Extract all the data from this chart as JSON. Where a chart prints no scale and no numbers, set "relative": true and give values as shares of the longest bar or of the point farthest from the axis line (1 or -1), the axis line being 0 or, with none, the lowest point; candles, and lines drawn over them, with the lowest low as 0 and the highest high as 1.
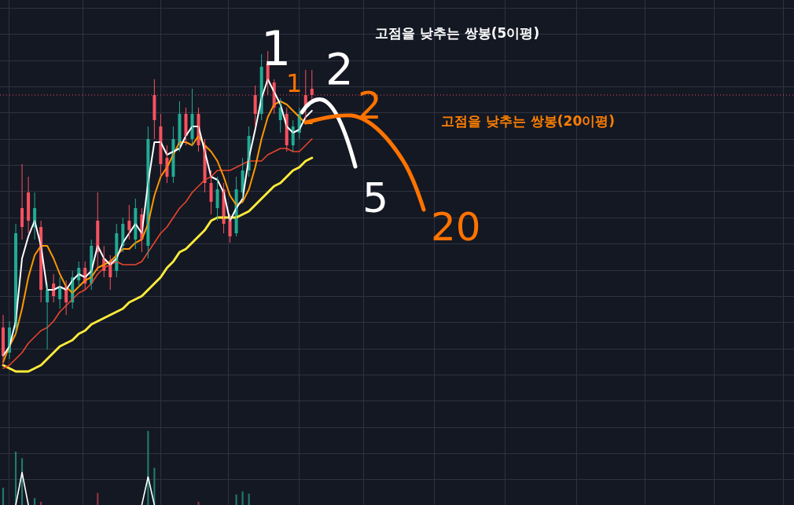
{
  "chart_data": [
    {
      "type": "candlestick",
      "relative": true,
      "grid": true,
      "marker": "none",
      "categories": [
        null,
        null,
        null,
        null,
        null,
        null,
        null,
        null,
        null,
        null,
        null,
        null,
        null,
        null,
        null,
        null,
        null,
        null,
        null,
        null,
        null,
        null,
        null,
        null,
        null,
        null,
        null,
        null,
        null,
        null,
        null,
        null,
        null,
        null,
        null,
        null,
        null,
        null,
        null,
        null,
        null,
        null,
        null,
        null,
        null,
        null,
        null,
        null,
        null,
        null,
        null,
        null,
        null,
        null,
        null,
        null,
        null,
        null,
        null,
        null,
        null,
        null,
        null,
        null,
        null,
        null,
        null,
        null,
        null,
        null,
        null,
        null,
        null,
        null,
        null,
        null,
        null,
        null,
        null,
        null,
        null,
        null,
        null,
        null,
        null,
        null,
        null,
        null,
        null,
        null,
        null,
        null,
        null,
        null,
        null,
        null,
        null,
        null,
        null,
        null,
        null,
        null,
        null,
        null,
        null,
        null,
        null,
        null,
        null,
        null,
        null,
        null,
        null,
        null,
        null,
        null,
        null,
        null,
        null,
        null,
        null,
        null,
        null,
        null,
        null,
        null
      ],
      "ohlc": [
        [
          0.12,
          0.16,
          0,
          0.03
        ],
        [
          0.04,
          0.14,
          0.02,
          0.12
        ],
        [
          0.12,
          0.45,
          0.1,
          0.42
        ],
        [
          0.5,
          0.64,
          0.4,
          0.44
        ],
        [
          0.55,
          0.6,
          0.42,
          0.46
        ],
        [
          0.44,
          0.55,
          0.4,
          0.5
        ],
        [
          0.44,
          0.46,
          0.2,
          0.24
        ],
        [
          0.2,
          0.26,
          0.05,
          0.24
        ],
        [
          0.26,
          0.29,
          0.2,
          0.22
        ],
        [
          0.21,
          0.28,
          0.18,
          0.25
        ],
        [
          0.25,
          0.27,
          0.16,
          0.2
        ],
        [
          0.2,
          0.3,
          0.18,
          0.28
        ],
        [
          0.27,
          0.33,
          0.25,
          0.31
        ],
        [
          0.31,
          0.33,
          0.24,
          0.26
        ],
        [
          0.26,
          0.4,
          0.24,
          0.38
        ],
        [
          0.46,
          0.55,
          0.3,
          0.36
        ],
        [
          0.34,
          0.38,
          0.28,
          0.3
        ],
        [
          0.33,
          0.35,
          0.24,
          0.28
        ],
        [
          0.3,
          0.45,
          0.28,
          0.42
        ],
        [
          0.38,
          0.47,
          0.36,
          0.45
        ],
        [
          0.46,
          0.51,
          0.4,
          0.43
        ],
        [
          0.4,
          0.53,
          0.37,
          0.5
        ],
        [
          0.48,
          0.5,
          0.36,
          0.4
        ],
        [
          0.38,
          0.76,
          0.34,
          0.72
        ],
        [
          0.86,
          0.91,
          0.72,
          0.78
        ],
        [
          0.76,
          0.8,
          0.6,
          0.64
        ],
        [
          0.66,
          0.7,
          0.58,
          0.6
        ],
        [
          0.6,
          0.76,
          0.58,
          0.72
        ],
        [
          0.7,
          0.84,
          0.68,
          0.8
        ],
        [
          0.8,
          0.82,
          0.7,
          0.73
        ],
        [
          0.72,
          0.88,
          0.7,
          0.8
        ],
        [
          0.8,
          0.82,
          0.68,
          0.7
        ],
        [
          0.7,
          0.72,
          0.55,
          0.58
        ],
        [
          0.58,
          0.62,
          0.48,
          0.52
        ],
        [
          0.5,
          0.6,
          0.46,
          0.56
        ],
        [
          0.56,
          0.58,
          0.42,
          0.45
        ],
        [
          0.46,
          0.48,
          0.39,
          0.41
        ],
        [
          0.42,
          0.6,
          0.41,
          0.56
        ],
        [
          0.55,
          0.66,
          0.53,
          0.62
        ],
        [
          0.62,
          0.76,
          0.6,
          0.73
        ],
        [
          0.86,
          0.89,
          0.76,
          0.8
        ],
        [
          0.8,
          0.99,
          0.78,
          0.95
        ],
        [
          0.96,
          1,
          0.86,
          0.9
        ],
        [
          0.9,
          0.91,
          0.8,
          0.82
        ],
        [
          0.78,
          0.85,
          0.74,
          0.82
        ],
        [
          0.8,
          0.82,
          0.68,
          0.7
        ],
        [
          0.7,
          0.78,
          0.68,
          0.76
        ],
        [
          0.74,
          0.82,
          0.72,
          0.8
        ],
        [
          0.86,
          0.94,
          0.78,
          0.82
        ],
        [
          0.88,
          0.94,
          0.84,
          0.86
        ],
        null,
        null,
        null,
        null,
        null,
        null,
        null,
        null,
        null,
        null,
        null,
        null,
        null,
        null,
        null,
        null,
        null,
        null,
        null,
        null,
        null,
        null,
        null,
        null,
        null,
        null,
        null,
        null,
        null,
        null,
        null,
        null,
        null,
        null,
        null,
        null,
        null,
        null,
        null,
        null,
        null,
        null,
        null,
        null,
        null,
        null,
        null,
        null,
        null,
        null,
        null,
        null,
        null,
        null,
        null,
        null,
        null,
        null,
        null,
        null,
        null,
        null,
        null,
        null,
        null,
        null,
        null,
        null,
        null,
        null,
        null,
        null,
        null,
        null,
        null,
        null
      ],
      "colors": [
        "#f7525f",
        "#22ab94",
        "#22ab94",
        "#f7525f",
        "#f7525f",
        "#22ab94",
        "#f7525f",
        "#22ab94",
        "#f7525f",
        "#22ab94",
        "#f7525f",
        "#22ab94",
        "#22ab94",
        "#f7525f",
        "#22ab94",
        "#f7525f",
        "#f7525f",
        "#f7525f",
        "#22ab94",
        "#22ab94",
        "#f7525f",
        "#22ab94",
        "#f7525f",
        "#22ab94",
        "#f7525f",
        "#f7525f",
        "#f7525f",
        "#22ab94",
        "#22ab94",
        "#f7525f",
        "#22ab94",
        "#f7525f",
        "#f7525f",
        "#f7525f",
        "#22ab94",
        "#f7525f",
        "#f7525f",
        "#22ab94",
        "#22ab94",
        "#22ab94",
        "#f7525f",
        "#22ab94",
        "#f7525f",
        "#f7525f",
        "#22ab94",
        "#f7525f",
        "#22ab94",
        "#22ab94",
        "#f7525f",
        "#f7525f",
        null,
        null,
        null,
        null,
        null,
        null,
        null,
        null,
        null,
        null,
        null,
        null,
        null,
        null,
        null,
        null,
        null,
        null,
        null,
        null,
        null,
        null,
        null,
        null,
        null,
        null,
        null,
        null,
        null,
        null,
        null,
        null,
        null,
        null,
        null,
        null,
        null,
        null,
        null,
        null,
        null,
        null,
        null,
        null,
        null,
        null,
        null,
        null,
        null,
        null,
        null,
        null,
        null,
        null,
        null,
        null,
        null,
        null,
        null,
        null,
        null,
        null,
        null,
        null,
        null,
        null,
        null,
        null,
        null,
        null,
        null,
        null,
        null,
        null,
        null,
        null
      ],
      "series": [
        {
          "type": "line",
          "color": "#ffffff",
          "values": [
            0.03,
            0.06,
            0.14,
            0.34,
            0.41,
            0.46,
            0.38,
            0.24,
            0.24,
            0.25,
            0.24,
            0.27,
            0.29,
            0.28,
            0.3,
            0.38,
            0.34,
            0.32,
            0.34,
            0.39,
            0.42,
            0.45,
            0.42,
            0.58,
            0.71,
            0.71,
            0.67,
            0.68,
            0.69,
            0.73,
            0.76,
            0.76,
            0.68,
            0.6,
            0.59,
            0.55,
            0.46,
            0.5,
            0.53,
            0.66,
            0.75,
            0.85,
            0.91,
            0.87,
            0.83,
            0.76,
            0.74,
            0.75,
            0.79,
            0.81,
            null,
            null,
            null,
            null,
            null,
            null,
            null,
            null,
            null,
            null,
            null,
            null,
            null,
            null,
            null,
            null,
            null,
            null,
            null,
            null,
            null,
            null,
            null,
            null,
            null,
            null,
            null,
            null,
            null,
            null,
            null,
            null,
            null,
            null,
            null,
            null,
            null,
            null,
            null,
            null,
            null,
            null,
            null,
            null,
            null,
            null,
            null,
            null,
            null,
            null,
            null,
            null,
            null,
            null,
            null,
            null,
            null,
            null,
            null,
            null,
            null,
            null,
            null,
            null,
            null,
            null,
            null,
            null,
            null,
            null,
            null,
            null,
            null,
            null,
            null,
            null
          ]
        },
        {
          "type": "line",
          "color": "#ff9800",
          "values": [
            0.01,
            0.06,
            0.1,
            0.18,
            0.28,
            0.35,
            0.38,
            0.38,
            0.34,
            0.29,
            0.25,
            0.23,
            0.25,
            0.27,
            0.28,
            0.31,
            0.32,
            0.33,
            0.35,
            0.37,
            0.37,
            0.39,
            0.4,
            0.45,
            0.54,
            0.6,
            0.63,
            0.67,
            0.71,
            0.71,
            0.7,
            0.73,
            0.7,
            0.68,
            0.65,
            0.6,
            0.54,
            0.51,
            0.52,
            0.56,
            0.63,
            0.72,
            0.79,
            0.83,
            0.84,
            0.83,
            0.81,
            0.79,
            0.77,
            0.77,
            null,
            null,
            null,
            null,
            null,
            null,
            null,
            null,
            null,
            null,
            null,
            null,
            null,
            null,
            null,
            null,
            null,
            null,
            null,
            null,
            null,
            null,
            null,
            null,
            null,
            null,
            null,
            null,
            null,
            null,
            null,
            null,
            null,
            null,
            null,
            null,
            null,
            null,
            null,
            null,
            null,
            null,
            null,
            null,
            null,
            null,
            null,
            null,
            null,
            null,
            null,
            null,
            null,
            null,
            null,
            null,
            null,
            null,
            null,
            null,
            null,
            null,
            null,
            null,
            null,
            null,
            null,
            null,
            null,
            null,
            null,
            null,
            null,
            null,
            null,
            null
          ]
        },
        {
          "type": "line",
          "color": "#e8452a",
          "values": [
            -0.01,
            0,
            0.02,
            0.04,
            0.07,
            0.09,
            0.11,
            0.12,
            0.14,
            0.17,
            0.19,
            0.21,
            0.23,
            0.24,
            0.26,
            0.29,
            0.31,
            0.32,
            0.33,
            0.32,
            0.32,
            0.32,
            0.33,
            0.36,
            0.39,
            0.42,
            0.44,
            0.47,
            0.5,
            0.52,
            0.55,
            0.57,
            0.59,
            0.6,
            0.62,
            0.62,
            0.62,
            0.63,
            0.64,
            0.65,
            0.65,
            0.65,
            0.67,
            0.68,
            0.69,
            0.69,
            0.68,
            0.68,
            0.7,
            0.72,
            null,
            null,
            null,
            null,
            null,
            null,
            null,
            null,
            null,
            null,
            null,
            null,
            null,
            null,
            null,
            null,
            null,
            null,
            null,
            null,
            null,
            null,
            null,
            null,
            null,
            null,
            null,
            null,
            null,
            null,
            null,
            null,
            null,
            null,
            null,
            null,
            null,
            null,
            null,
            null,
            null,
            null,
            null,
            null,
            null,
            null,
            null,
            null,
            null,
            null,
            null,
            null,
            null,
            null,
            null,
            null,
            null,
            null,
            null,
            null,
            null,
            null,
            null,
            null,
            null,
            null,
            null,
            null,
            null,
            null,
            null,
            null,
            null,
            null,
            null,
            null
          ]
        },
        {
          "type": "line",
          "color": "#ffeb3b",
          "values": [
            0,
            -0.01,
            -0.02,
            -0.02,
            -0.02,
            -0.01,
            0,
            0.02,
            0.04,
            0.06,
            0.07,
            0.08,
            0.1,
            0.11,
            0.13,
            0.14,
            0.15,
            0.16,
            0.17,
            0.18,
            0.2,
            0.21,
            0.22,
            0.24,
            0.26,
            0.28,
            0.31,
            0.33,
            0.36,
            0.37,
            0.39,
            0.41,
            0.43,
            0.46,
            0.47,
            0.47,
            0.47,
            0.47,
            0.48,
            0.49,
            0.51,
            0.53,
            0.55,
            0.57,
            0.58,
            0.6,
            0.62,
            0.63,
            0.65,
            0.66,
            null,
            null,
            null,
            null,
            null,
            null,
            null,
            null,
            null,
            null,
            null,
            null,
            null,
            null,
            null,
            null,
            null,
            null,
            null,
            null,
            null,
            null,
            null,
            null,
            null,
            null,
            null,
            null,
            null,
            null,
            null,
            null,
            null,
            null,
            null,
            null,
            null,
            null,
            null,
            null,
            null,
            null,
            null,
            null,
            null,
            null,
            null,
            null,
            null,
            null,
            null,
            null,
            null,
            null,
            null,
            null,
            null,
            null,
            null,
            null,
            null,
            null,
            null,
            null,
            null,
            null,
            null,
            null,
            null,
            null,
            null,
            null,
            null,
            null,
            null,
            null
          ]
        }
      ],
      "ref_lines": [
        {
          "axis": "y",
          "value": 0.86,
          "color": "#f24a6a",
          "line_style": "dotted"
        }
      ],
      "annotations": [
        "고점을 낮추는 쌍봉(5이평)",
        "고점을 낮추는 쌍봉(20이평)",
        "1",
        "2",
        "1",
        "2",
        "5",
        "20"
      ]
    },
    {
      "type": "bar",
      "relative": true,
      "marker": "none",
      "categories": [
        null,
        null,
        null,
        null,
        null,
        null,
        null,
        null,
        null,
        null,
        null,
        null,
        null,
        null,
        null,
        null,
        null,
        null,
        null,
        null,
        null,
        null,
        null,
        null,
        null,
        null,
        null,
        null,
        null,
        null,
        null,
        null,
        null,
        null,
        null,
        null,
        null,
        null,
        null,
        null,
        null,
        null,
        null,
        null,
        null,
        null,
        null,
        null,
        null,
        null,
        null,
        null,
        null,
        null,
        null,
        null,
        null,
        null,
        null,
        null,
        null,
        null,
        null,
        null,
        null,
        null,
        null,
        null,
        null,
        null,
        null,
        null,
        null,
        null,
        null,
        null,
        null,
        null,
        null,
        null,
        null,
        null,
        null,
        null,
        null,
        null,
        null,
        null,
        null,
        null,
        null,
        null,
        null,
        null,
        null,
        null,
        null,
        null,
        null,
        null,
        null,
        null,
        null,
        null,
        null,
        null,
        null,
        null,
        null,
        null,
        null,
        null,
        null,
        null,
        null,
        null,
        null,
        null,
        null,
        null,
        null,
        null,
        null,
        null,
        null,
        null
      ],
      "series": [
        {
          "colors": [
            "#1f7a6d",
            null,
            "#1f7a6d",
            "#1f7a6d",
            null,
            "#1f7a6d",
            "#8f3440",
            null,
            null,
            null,
            null,
            null,
            null,
            null,
            null,
            "#8f3440",
            null,
            null,
            null,
            null,
            null,
            null,
            null,
            "#1f7a6d",
            "#1f7a6d",
            null,
            null,
            null,
            null,
            null,
            null,
            "#8f3440",
            null,
            null,
            null,
            null,
            null,
            "#1f7a6d",
            "#1f7a6d",
            "#1f7a6d",
            null,
            null,
            null,
            null,
            null,
            null,
            null,
            null,
            null,
            null,
            null,
            null,
            null,
            null,
            null,
            null,
            null,
            null,
            null,
            null,
            null,
            null,
            null,
            null,
            null,
            null,
            null,
            null,
            null,
            null,
            null,
            null,
            null,
            null,
            null,
            null,
            null,
            null,
            null,
            null,
            null,
            null,
            null,
            null,
            null,
            null,
            null,
            null,
            null,
            null,
            null,
            null,
            null,
            null,
            null,
            null,
            null,
            null,
            null,
            null,
            null,
            null,
            null,
            null,
            null,
            null,
            null,
            null,
            null,
            null,
            null,
            null,
            null,
            null,
            null,
            null,
            null,
            null,
            null,
            null,
            null,
            null,
            null,
            null,
            null,
            null
          ],
          "values": [
            0.23,
            null,
            0.72,
            0.63,
            null,
            0.09,
            0.04,
            null,
            null,
            null,
            null,
            null,
            null,
            null,
            null,
            0.16,
            null,
            null,
            null,
            null,
            null,
            null,
            null,
            1,
            0.5,
            null,
            null,
            null,
            null,
            null,
            null,
            0.04,
            null,
            null,
            null,
            null,
            null,
            0.14,
            0.18,
            0.15,
            null,
            null,
            null,
            null,
            null,
            null,
            null,
            null,
            null,
            null,
            null,
            null,
            null,
            null,
            null,
            null,
            null,
            null,
            null,
            null,
            null,
            null,
            null,
            null,
            null,
            null,
            null,
            null,
            null,
            null,
            null,
            null,
            null,
            null,
            null,
            null,
            null,
            null,
            null,
            null,
            null,
            null,
            null,
            null,
            null,
            null,
            null,
            null,
            null,
            null,
            null,
            null,
            null,
            null,
            null,
            null,
            null,
            null,
            null,
            null,
            null,
            null,
            null,
            null,
            null,
            null,
            null,
            null,
            null,
            null,
            null,
            null,
            null,
            null,
            null,
            null,
            null,
            null,
            null,
            null,
            null,
            null,
            null,
            null,
            null,
            null
          ]
        },
        {
          "type": "line",
          "color": "#ffffff",
          "values": [
            null,
            null,
            0,
            0.44,
            0,
            null,
            null,
            null,
            null,
            null,
            null,
            null,
            null,
            null,
            null,
            null,
            null,
            null,
            null,
            null,
            null,
            null,
            0,
            0.38,
            0,
            null,
            null,
            null,
            null,
            null,
            null,
            null,
            null,
            null,
            null,
            null,
            null,
            null,
            null,
            null,
            null,
            null,
            null,
            null,
            null,
            null,
            null,
            null,
            null,
            null,
            null,
            null,
            null,
            null,
            null,
            null,
            null,
            null,
            null,
            null,
            null,
            null,
            null,
            null,
            null,
            null,
            null,
            null,
            null,
            null,
            null,
            null,
            null,
            null,
            null,
            null,
            null,
            null,
            null,
            null,
            null,
            null,
            null,
            null,
            null,
            null,
            null,
            null,
            null,
            null,
            null,
            null,
            null,
            null,
            null,
            null,
            null,
            null,
            null,
            null,
            null,
            null,
            null,
            null,
            null,
            null,
            null,
            null,
            null,
            null,
            null,
            null,
            null,
            null,
            null,
            null,
            null,
            null,
            null,
            null,
            null,
            null,
            null,
            null,
            null,
            null
          ]
        }
      ]
    }
  ]
}
